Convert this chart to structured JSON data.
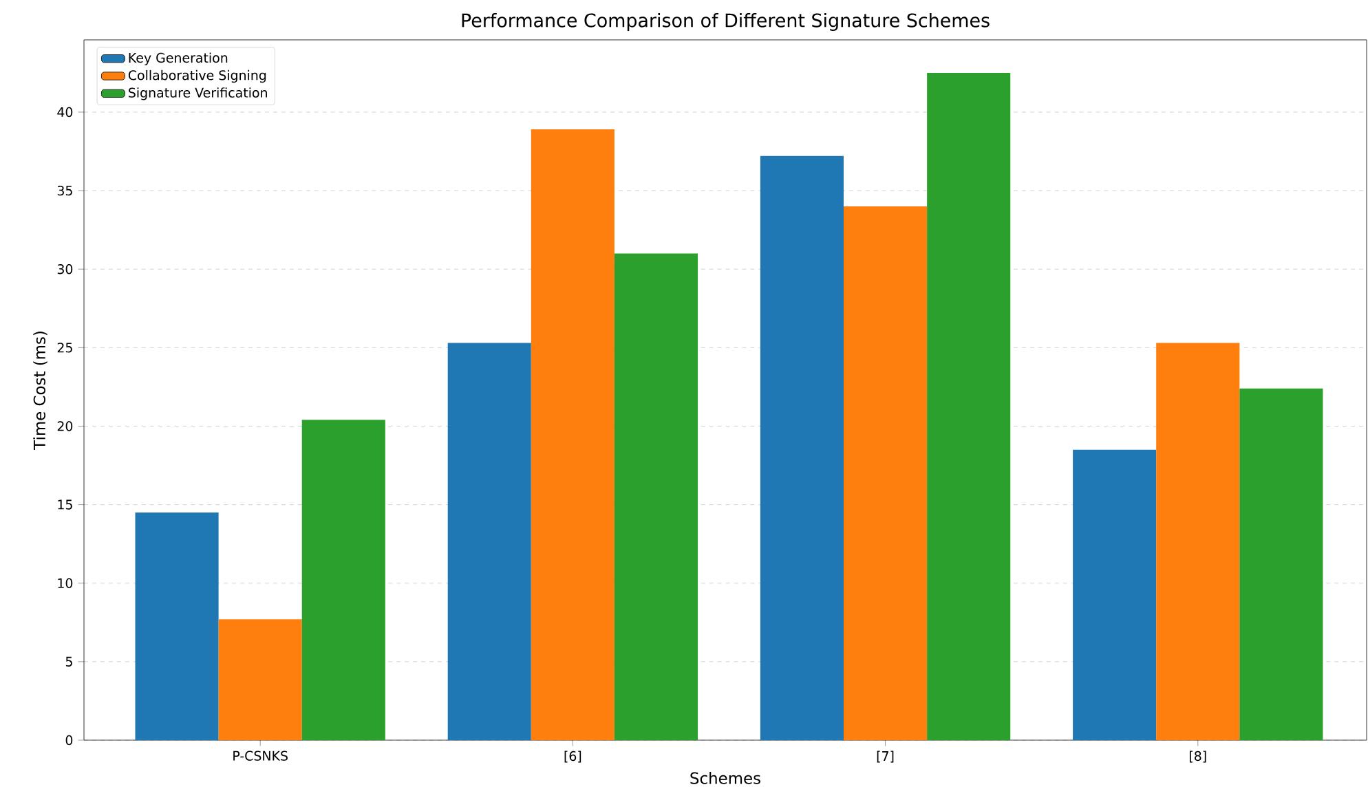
{
  "chart_data": {
    "type": "bar",
    "title": "Performance Comparison of Different Signature Schemes",
    "xlabel": "Schemes",
    "ylabel": "Time Cost (ms)",
    "categories": [
      "P-CSNKS",
      "[6]",
      "[7]",
      "[8]"
    ],
    "series": [
      {
        "name": "Key Generation",
        "color": "#1f77b4",
        "values": [
          14.5,
          25.3,
          37.2,
          18.5
        ]
      },
      {
        "name": "Collaborative Signing",
        "color": "#ff7f0e",
        "values": [
          7.7,
          38.9,
          34.0,
          25.3
        ]
      },
      {
        "name": "Signature Verification",
        "color": "#2ca02c",
        "values": [
          20.4,
          31.0,
          42.5,
          22.4
        ]
      }
    ],
    "ylim": [
      0,
      44.6
    ],
    "yticks": [
      0,
      5,
      10,
      15,
      20,
      25,
      30,
      35,
      40
    ],
    "grid": "y",
    "line_style": "dashed",
    "legend": "top left"
  }
}
